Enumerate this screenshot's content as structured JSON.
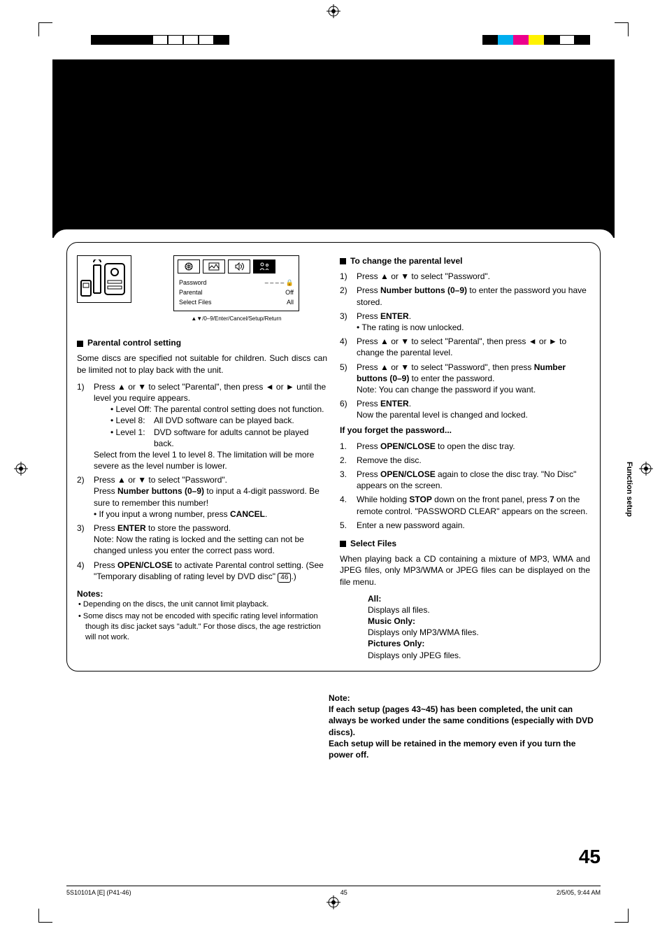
{
  "print_marks": {
    "left_bar_colors": [
      "#000000",
      "#000000",
      "#000000",
      "#000000",
      "#ffffff",
      "#ffffff",
      "#ffffff",
      "#ffffff",
      "#000000"
    ],
    "right_bar_colors": [
      "#000000",
      "#00aeef",
      "#ec008c",
      "#fff200",
      "#000000",
      "#ffffff",
      "#000000"
    ]
  },
  "setup_box": {
    "rows": [
      {
        "label": "Password",
        "value": "– – – –",
        "lock": true
      },
      {
        "label": "Parental",
        "value": "Off"
      },
      {
        "label": "Select Files",
        "value": "All"
      }
    ],
    "hint": "▲▼/0–9/Enter/Cancel/Setup/Return"
  },
  "left": {
    "parental_head": "Parental control setting",
    "intro": "Some discs are specified not suitable for children. Such discs can be limited not to play back with the unit.",
    "step1_a": "Press ▲ or ▼ to select \"Parental\", then press ◄ or ► until the level you require appears.",
    "lvlOff_l": "• Level Off:",
    "lvlOff_v": "The parental control setting does not function.",
    "lvl8_l": "• Level 8:",
    "lvl8_v": "All DVD software can be played back.",
    "lvl1_l": "• Level 1:",
    "lvl1_v": "DVD software for adults cannot be played back.",
    "step1_b": "Select from the level 1 to level 8. The limitation will be more severe as the level number is lower.",
    "step2_a": "Press ▲ or ▼ to select \"Password\".",
    "step2_b_pre": "Press ",
    "step2_b_bold": "Number buttons (0–9)",
    "step2_b_post": " to input a 4-digit password. Be sure to remember this number!",
    "step2_c_pre": "• If you input a wrong number, press ",
    "step2_c_bold": "CANCEL",
    "step2_c_post": ".",
    "step3_a_pre": "Press ",
    "step3_a_bold": "ENTER",
    "step3_a_post": " to store the password.",
    "step3_b": "Note: Now the rating is locked and the setting can not be changed unless you enter the correct pass word.",
    "step4_a_pre": "Press ",
    "step4_a_bold": "OPEN/CLOSE",
    "step4_a_post": " to activate Parental control setting. (See \"Temporary disabling of rating level by DVD disc\" ",
    "step4_a_tail": ".)",
    "step4_boxnum": "46",
    "notes_head": "Notes:",
    "note1": "Depending on the discs, the unit cannot limit playback.",
    "note2": "Some discs may not be encoded with specific rating level information though its disc jacket says \"adult.\" For those discs, the age restriction will not work."
  },
  "right": {
    "change_head": "To change the parental level",
    "c1": "Press ▲ or ▼ to select \"Password\".",
    "c2_pre": "Press ",
    "c2_bold": "Number buttons (0–9)",
    "c2_post": " to enter the password you have stored.",
    "c3_pre": "Press ",
    "c3_bold": "ENTER",
    "c3_post": ".",
    "c3_sub": "• The rating is now unlocked.",
    "c4": "Press ▲ or ▼ to select \"Parental\", then press ◄ or ► to change the parental level.",
    "c5_pre": "Press ▲ or ▼ to select \"Password\", then press ",
    "c5_bold": "Number buttons (0–9)",
    "c5_post": " to enter the password.",
    "c5_sub": "Note: You can change the password if you want.",
    "c6_pre": "Press ",
    "c6_bold": "ENTER",
    "c6_post": ".",
    "c6_sub": "Now the parental level is changed and locked.",
    "forget_head": "If you forget the password...",
    "f1_pre": "Press ",
    "f1_bold": "OPEN/CLOSE",
    "f1_post": " to open the disc tray.",
    "f2": "Remove the disc.",
    "f3_pre": "Press ",
    "f3_bold": "OPEN/CLOSE",
    "f3_post": " again to close the disc tray. \"No Disc\" appears on the screen.",
    "f4_pre": "While holding ",
    "f4_bold1": "STOP",
    "f4_mid": " down on the front panel, press ",
    "f4_bold2": "7",
    "f4_post": " on the remote control. \"PASSWORD CLEAR\" appears on the screen.",
    "f5": "Enter a new password again.",
    "select_head": "Select Files",
    "select_intro": "When playing back a CD containing a mixture of MP3, WMA and JPEG files, only MP3/WMA or JPEG files can be displayed on the file menu.",
    "opt_all_l": "All:",
    "opt_all_v": "Displays all files.",
    "opt_mus_l": "Music Only:",
    "opt_mus_v": "Displays only MP3/WMA files.",
    "opt_pic_l": "Pictures Only:",
    "opt_pic_v": "Displays only JPEG files."
  },
  "below": {
    "note_head": "Note:",
    "line1": "If each setup (pages 43~45) has been completed, the unit can always be worked under the same conditions (especially with DVD discs).",
    "line2": "Each setup will be retained in the memory even if you turn the power off."
  },
  "side_tab": "Function setup",
  "page_number": "45",
  "footer": {
    "left": "5S10101A [E] (P41-46)",
    "mid": "45",
    "right": "2/5/05, 9:44 AM"
  }
}
